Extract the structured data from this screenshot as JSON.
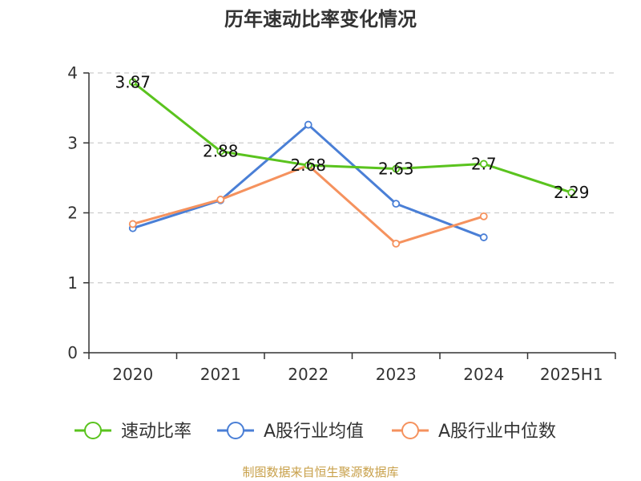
{
  "colors": {
    "speed_ratio": "#5ac31e",
    "industry_avg": "#4a7fd6",
    "industry_median": "#f5925e",
    "source": "#c8a04a",
    "axis": "#333333",
    "grid": "#cccccc"
  },
  "chart_data": {
    "type": "line",
    "title": "历年速动比率变化情况",
    "categories": [
      "2020",
      "2021",
      "2022",
      "2023",
      "2024",
      "2025H1"
    ],
    "ylim": [
      0,
      4
    ],
    "yticks": [
      "0",
      "1",
      "2",
      "3",
      "4"
    ],
    "grid": true,
    "legend_position": "bottom",
    "series": [
      {
        "name": "速动比率",
        "key": "speed_ratio",
        "values": [
          3.87,
          2.88,
          2.68,
          2.63,
          2.7,
          2.29
        ],
        "labels": [
          "3.87",
          "2.88",
          "2.68",
          "2.63",
          "2.7",
          "2.29"
        ]
      },
      {
        "name": "A股行业均值",
        "key": "industry_avg",
        "values": [
          1.78,
          2.18,
          3.26,
          2.13,
          1.65,
          null
        ]
      },
      {
        "name": "A股行业中位数",
        "key": "industry_median",
        "values": [
          1.84,
          2.19,
          2.68,
          1.56,
          1.95,
          null
        ]
      }
    ]
  },
  "source_text": "制图数据来自恒生聚源数据库"
}
